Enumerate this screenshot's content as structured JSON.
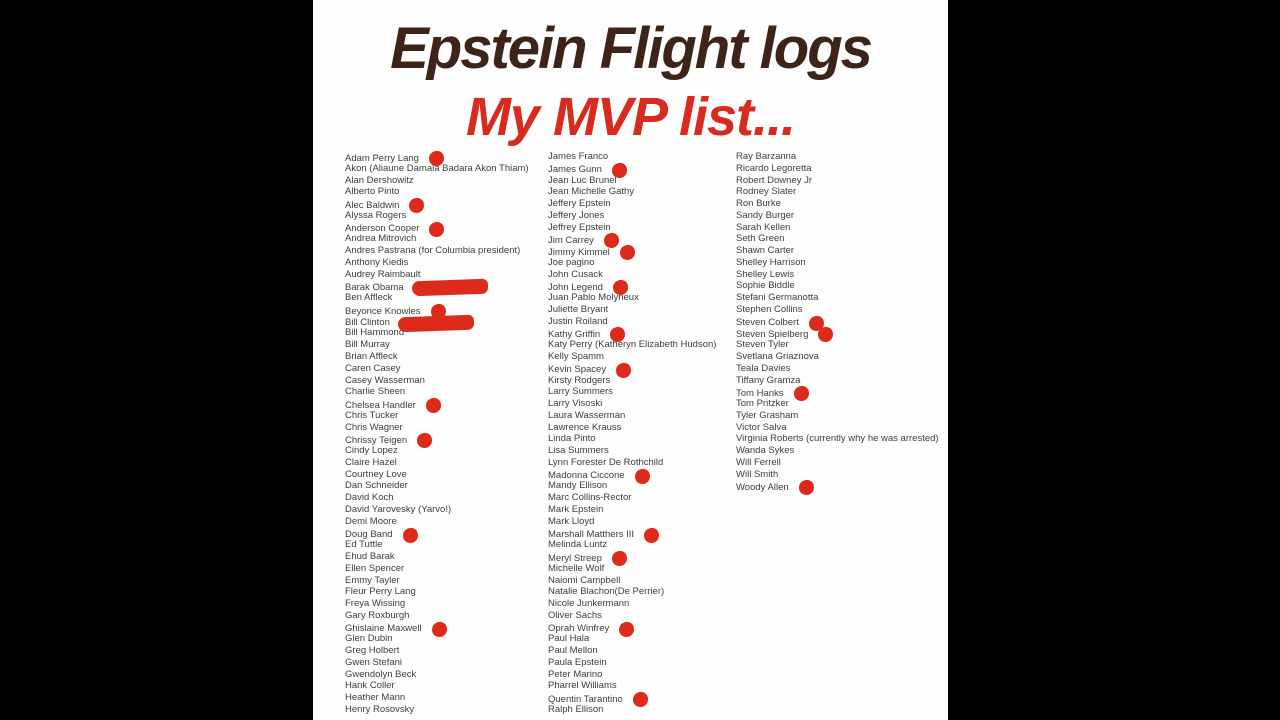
{
  "header": {
    "title": "Epstein Flight logs",
    "subtitle": "My MVP list..."
  },
  "colors": {
    "background": "#000000",
    "panel": "#fdfdfd",
    "title_text": "#3e2418",
    "subtitle_text": "#d92a1e",
    "mark_red": "#dd2a1b",
    "name_text": "#3e3e3e"
  },
  "marks_legend": {
    "dot": "red-dot-mark",
    "scribble": "red-scribble-mark"
  },
  "list": {
    "columns": [
      {
        "names": [
          {
            "text": "Adam Perry Lang",
            "mark": "dot"
          },
          {
            "text": "Akon (Aliaune Damala Badara Akon Thiam)"
          },
          {
            "text": "Alan Dershowitz"
          },
          {
            "text": "Alberto Pinto"
          },
          {
            "text": "Alec Baldwin",
            "mark": "dot"
          },
          {
            "text": "Alyssa Rogers"
          },
          {
            "text": "Anderson Cooper",
            "mark": "dot"
          },
          {
            "text": "Andrea Mitrovich"
          },
          {
            "text": "Andres Pastrana (for Columbia president)"
          },
          {
            "text": "Anthony Kiedis"
          },
          {
            "text": "Audrey Raimbault"
          },
          {
            "text": "Barak Obama",
            "mark": "scribble"
          },
          {
            "text": "Ben Affleck"
          },
          {
            "text": "Beyonce Knowles",
            "mark": "dot"
          },
          {
            "text": "Bill Clinton",
            "mark": "scribble"
          },
          {
            "text": "Bill Hammond"
          },
          {
            "text": "Bill Murray"
          },
          {
            "text": "Brian Affleck"
          },
          {
            "text": "Caren Casey"
          },
          {
            "text": "Casey Wasserman"
          },
          {
            "text": "Charlie Sheen"
          },
          {
            "text": "Chelsea Handler",
            "mark": "dot"
          },
          {
            "text": "Chris Tucker"
          },
          {
            "text": "Chris Wagner"
          },
          {
            "text": "Chrissy Teigen",
            "mark": "dot"
          },
          {
            "text": "Cindy Lopez"
          },
          {
            "text": "Claire Hazel"
          },
          {
            "text": "Courtney Love"
          },
          {
            "text": "Dan Schneider"
          },
          {
            "text": "David Koch"
          },
          {
            "text": "David Yarovesky (Yarvo!)"
          },
          {
            "text": "Demi Moore"
          },
          {
            "text": "Doug Band",
            "mark": "dot"
          },
          {
            "text": "Ed Tuttle"
          },
          {
            "text": "Ehud Barak"
          },
          {
            "text": "Ellen Spencer"
          },
          {
            "text": "Emmy Tayler"
          },
          {
            "text": "Fleur Perry Lang"
          },
          {
            "text": "Freya Wissing"
          },
          {
            "text": "Gary Roxburgh"
          },
          {
            "text": "Ghislaine Maxwell",
            "mark": "dot"
          },
          {
            "text": "Glen Dubin"
          },
          {
            "text": "Greg Holbert"
          },
          {
            "text": "Gwen Stefani"
          },
          {
            "text": "Gwendolyn Beck"
          },
          {
            "text": "Hank Coller"
          },
          {
            "text": "Heather Mann"
          },
          {
            "text": "Henry Rosovsky"
          }
        ]
      },
      {
        "names": [
          {
            "text": "James Franco"
          },
          {
            "text": "James Gunn",
            "mark": "dot"
          },
          {
            "text": "Jean Luc Brunel"
          },
          {
            "text": "Jean Michelle Gathy"
          },
          {
            "text": "Jeffery Epstein"
          },
          {
            "text": "Jeffery Jones"
          },
          {
            "text": "Jeffrey Epstein"
          },
          {
            "text": "Jim Carrey",
            "mark": "dot"
          },
          {
            "text": "Jimmy Kimmel",
            "mark": "dot"
          },
          {
            "text": "Joe pagino"
          },
          {
            "text": "John Cusack"
          },
          {
            "text": "John Legend",
            "mark": "dot"
          },
          {
            "text": "Juan Pablo Molyneux"
          },
          {
            "text": "Juliette Bryant"
          },
          {
            "text": "Justin Roiland"
          },
          {
            "text": "Kathy Griffin",
            "mark": "dot"
          },
          {
            "text": "Katy Perry (Katheryn Elizabeth Hudson)"
          },
          {
            "text": "Kelly Spamm"
          },
          {
            "text": "Kevin Spacey",
            "mark": "dot"
          },
          {
            "text": "Kirsty Rodgers"
          },
          {
            "text": "Larry Summers"
          },
          {
            "text": "Larry Visoski"
          },
          {
            "text": "Laura Wasserman"
          },
          {
            "text": "Lawrence Krauss"
          },
          {
            "text": "Linda Pinto"
          },
          {
            "text": "Lisa Summers"
          },
          {
            "text": "Lynn Forester De Rothchild"
          },
          {
            "text": "Madonna Ciccone",
            "mark": "dot"
          },
          {
            "text": "Mandy Ellison"
          },
          {
            "text": "Marc Collins-Rector"
          },
          {
            "text": "Mark Epstein"
          },
          {
            "text": "Mark Lloyd"
          },
          {
            "text": "Marshall Matthers III",
            "mark": "dot"
          },
          {
            "text": "Melinda Luntz"
          },
          {
            "text": "Meryl Streep",
            "mark": "dot"
          },
          {
            "text": "Michelle Wolf"
          },
          {
            "text": "Naiomi Campbell"
          },
          {
            "text": "Natalie Blachon(De Perrier)"
          },
          {
            "text": "Nicole Junkermann"
          },
          {
            "text": "Oliver Sachs"
          },
          {
            "text": "Oprah Winfrey",
            "mark": "dot"
          },
          {
            "text": "Paul Hala"
          },
          {
            "text": "Paul Mellon"
          },
          {
            "text": "Paula Epstein"
          },
          {
            "text": "Peter Marino"
          },
          {
            "text": "Pharrel Williams"
          },
          {
            "text": "Quentin Tarantino",
            "mark": "dot"
          },
          {
            "text": "Ralph Ellison"
          }
        ]
      },
      {
        "names": [
          {
            "text": "Ray Barzanna"
          },
          {
            "text": "Ricardo Legoretta"
          },
          {
            "text": "Robert Downey Jr"
          },
          {
            "text": "Rodney Slater"
          },
          {
            "text": "Ron Burke"
          },
          {
            "text": "Sandy Burger"
          },
          {
            "text": "Sarah Kellen"
          },
          {
            "text": "Seth Green"
          },
          {
            "text": "Shawn Carter"
          },
          {
            "text": "Shelley Harrison"
          },
          {
            "text": "Shelley Lewis"
          },
          {
            "text": "Sophie Biddle"
          },
          {
            "text": "Stefani Germanotta"
          },
          {
            "text": "Stephen Collins"
          },
          {
            "text": "Steven Colbert",
            "mark": "dot"
          },
          {
            "text": "Steven Spielberg",
            "mark": "dot"
          },
          {
            "text": "Steven Tyler"
          },
          {
            "text": "Svetlana Griaznova"
          },
          {
            "text": "Teala Davies"
          },
          {
            "text": "Tiffany Gramza"
          },
          {
            "text": "Tom Hanks",
            "mark": "dot"
          },
          {
            "text": "Tom Pritzker"
          },
          {
            "text": "Tyler Grasham"
          },
          {
            "text": "Victor Salva"
          },
          {
            "text": "Virginia Roberts (currently why he was arrested)"
          },
          {
            "text": "Wanda Sykes"
          },
          {
            "text": "Will Ferrell"
          },
          {
            "text": "Will Smith"
          },
          {
            "text": "Woody Allen",
            "mark": "dot"
          }
        ]
      }
    ]
  }
}
